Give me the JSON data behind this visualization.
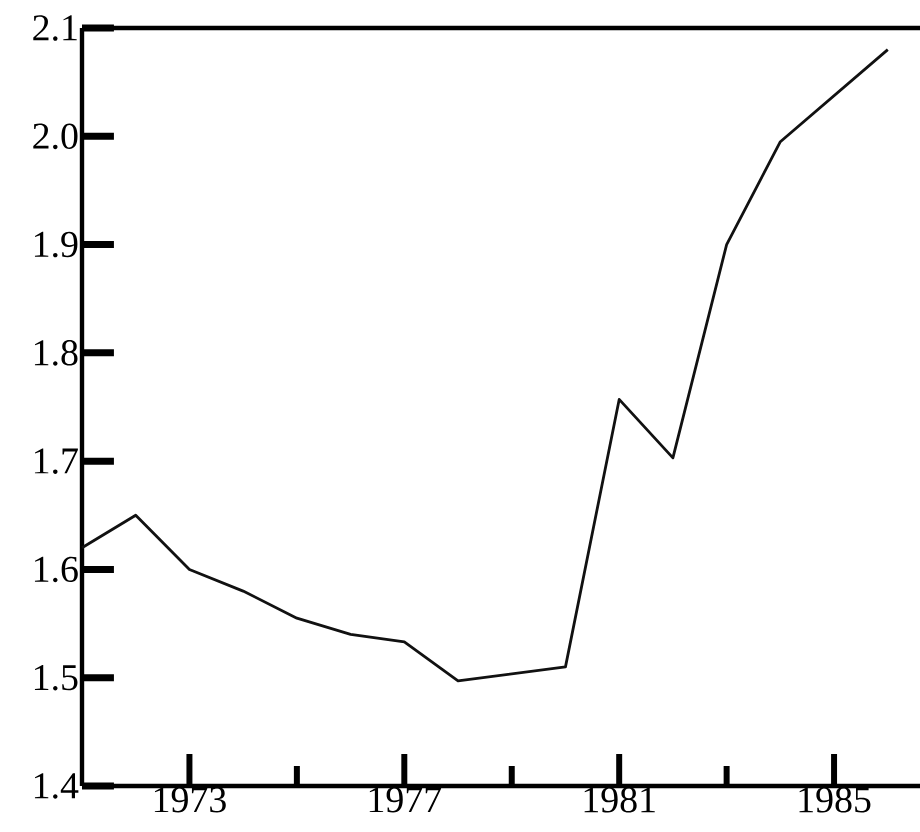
{
  "chart_data": {
    "type": "line",
    "x": [
      1971,
      1972,
      1973,
      1974,
      1975,
      1976,
      1977,
      1978,
      1980,
      1981,
      1982,
      1983,
      1984,
      1986
    ],
    "series": [
      {
        "color": "#111111",
        "values": [
          1.62,
          1.65,
          1.6,
          1.58,
          1.555,
          1.54,
          1.533,
          1.497,
          1.51,
          1.757,
          1.703,
          1.9,
          1.995,
          2.08
        ]
      }
    ],
    "xlim": [
      1971,
      1986.6
    ],
    "ylim": [
      1.4,
      2.1
    ],
    "xticks": [
      1973,
      {
        "value": 1975,
        "label": null
      },
      1977,
      {
        "value": 1979,
        "label": null
      },
      1981,
      {
        "value": 1983,
        "label": null
      },
      1985
    ],
    "yticks": [
      {
        "value": 1.4,
        "label": "1.4"
      },
      {
        "value": 1.5,
        "label": "1.5"
      },
      {
        "value": 1.6,
        "label": "1.6"
      },
      {
        "value": 1.7,
        "label": "1.7"
      },
      {
        "value": 1.8,
        "label": "1.8"
      },
      {
        "value": 1.9,
        "label": "1.9"
      },
      {
        "value": 2.0,
        "label": "2.0"
      },
      {
        "value": 2.1,
        "label": "2.1"
      }
    ],
    "grid": false,
    "marker": "none",
    "line_style": "solid"
  }
}
